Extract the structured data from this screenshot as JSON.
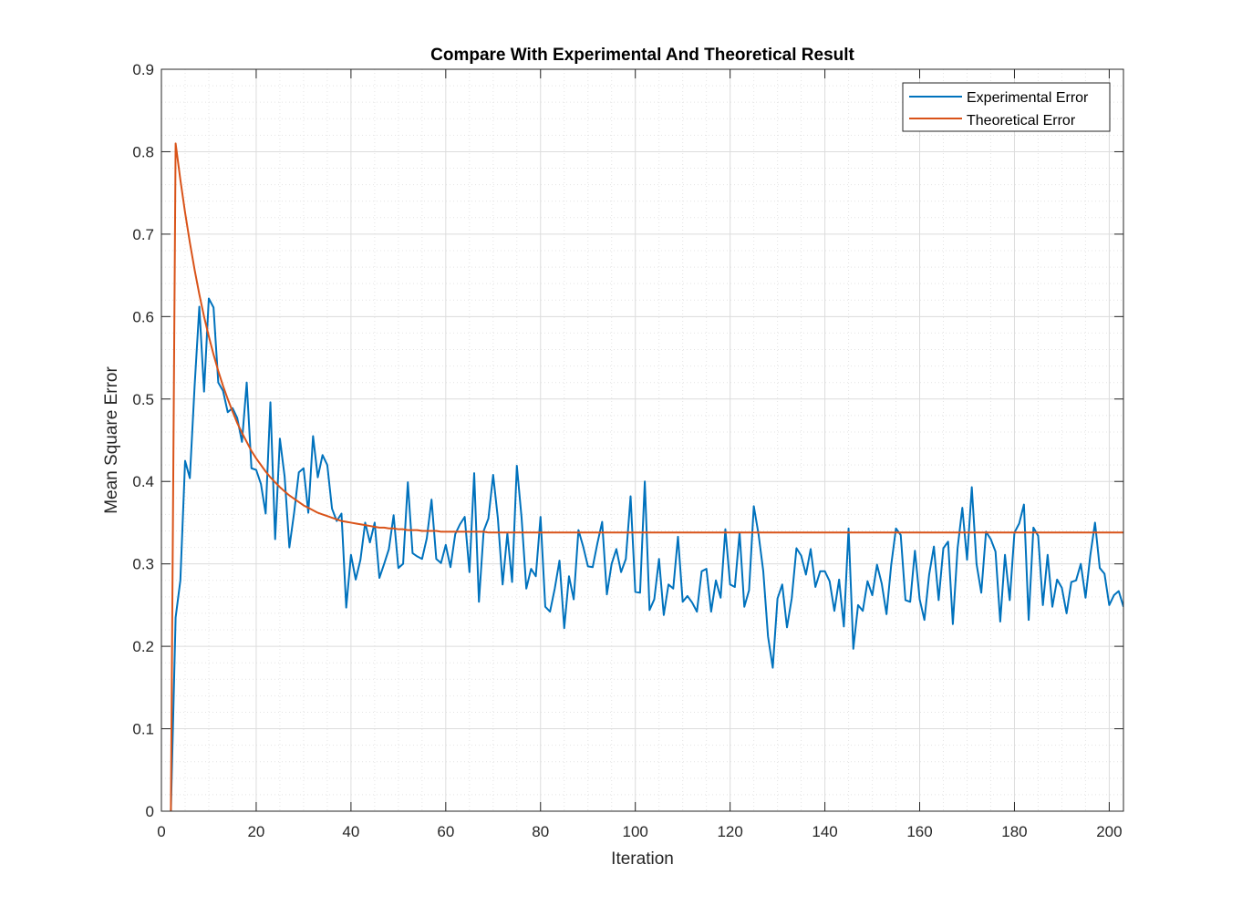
{
  "chart_data": {
    "type": "line",
    "title": "Compare With Experimental And Theoretical Result",
    "xlabel": "Iteration",
    "ylabel": "Mean Square Error",
    "xlim": [
      0,
      203
    ],
    "ylim": [
      0,
      0.9
    ],
    "xticks": [
      0,
      20,
      40,
      60,
      80,
      100,
      120,
      140,
      160,
      180,
      200
    ],
    "yticks": [
      0,
      0.1,
      0.2,
      0.3,
      0.4,
      0.5,
      0.6,
      0.7,
      0.8,
      0.9
    ],
    "xtick_labels": [
      "0",
      "20",
      "40",
      "60",
      "80",
      "100",
      "120",
      "140",
      "160",
      "180",
      "200"
    ],
    "ytick_labels": [
      "0",
      "0.1",
      "0.2",
      "0.3",
      "0.4",
      "0.5",
      "0.6",
      "0.7",
      "0.8",
      "0.9"
    ],
    "grid": true,
    "minor_grid": true,
    "legend_position": "top-right",
    "x_start": 2,
    "series": [
      {
        "name": "Experimental Error",
        "color": "#0072BD",
        "values": [
          0,
          0.235,
          0.28,
          0.425,
          0.404,
          0.515,
          0.612,
          0.509,
          0.622,
          0.611,
          0.52,
          0.51,
          0.484,
          0.489,
          0.477,
          0.448,
          0.52,
          0.416,
          0.414,
          0.397,
          0.361,
          0.496,
          0.33,
          0.452,
          0.406,
          0.32,
          0.362,
          0.411,
          0.416,
          0.362,
          0.455,
          0.405,
          0.432,
          0.42,
          0.367,
          0.352,
          0.361,
          0.247,
          0.311,
          0.281,
          0.305,
          0.35,
          0.326,
          0.35,
          0.283,
          0.3,
          0.318,
          0.359,
          0.295,
          0.3,
          0.399,
          0.313,
          0.309,
          0.306,
          0.331,
          0.378,
          0.306,
          0.301,
          0.323,
          0.296,
          0.336,
          0.348,
          0.357,
          0.29,
          0.41,
          0.254,
          0.34,
          0.355,
          0.408,
          0.355,
          0.275,
          0.337,
          0.278,
          0.419,
          0.356,
          0.27,
          0.294,
          0.285,
          0.357,
          0.248,
          0.242,
          0.27,
          0.304,
          0.222,
          0.285,
          0.257,
          0.341,
          0.321,
          0.297,
          0.296,
          0.325,
          0.351,
          0.263,
          0.3,
          0.318,
          0.29,
          0.306,
          0.382,
          0.266,
          0.265,
          0.4,
          0.244,
          0.257,
          0.306,
          0.238,
          0.275,
          0.27,
          0.333,
          0.254,
          0.261,
          0.253,
          0.242,
          0.291,
          0.294,
          0.242,
          0.28,
          0.259,
          0.342,
          0.275,
          0.272,
          0.338,
          0.248,
          0.268,
          0.37,
          0.336,
          0.291,
          0.212,
          0.174,
          0.258,
          0.275,
          0.223,
          0.258,
          0.319,
          0.31,
          0.287,
          0.318,
          0.272,
          0.291,
          0.291,
          0.279,
          0.243,
          0.281,
          0.224,
          0.343,
          0.197,
          0.25,
          0.243,
          0.279,
          0.262,
          0.299,
          0.276,
          0.239,
          0.299,
          0.343,
          0.335,
          0.256,
          0.254,
          0.316,
          0.257,
          0.232,
          0.287,
          0.321,
          0.256,
          0.319,
          0.327,
          0.227,
          0.319,
          0.368,
          0.305,
          0.393,
          0.3,
          0.265,
          0.339,
          0.33,
          0.315,
          0.23,
          0.311,
          0.256,
          0.338,
          0.349,
          0.372,
          0.232,
          0.344,
          0.334,
          0.25,
          0.311,
          0.248,
          0.281,
          0.271,
          0.24,
          0.278,
          0.28,
          0.3,
          0.259,
          0.31,
          0.35,
          0.295,
          0.288,
          0.25,
          0.262,
          0.267,
          0.248
        ]
      },
      {
        "name": "Theoretical Error",
        "color": "#D95319",
        "values": [
          0,
          0.81,
          0.766,
          0.726,
          0.69,
          0.657,
          0.627,
          0.6,
          0.576,
          0.554,
          0.534,
          0.516,
          0.5,
          0.485,
          0.471,
          0.459,
          0.448,
          0.437,
          0.428,
          0.42,
          0.412,
          0.405,
          0.399,
          0.393,
          0.388,
          0.383,
          0.379,
          0.375,
          0.371,
          0.368,
          0.365,
          0.362,
          0.36,
          0.358,
          0.356,
          0.354,
          0.352,
          0.351,
          0.35,
          0.349,
          0.348,
          0.347,
          0.346,
          0.345,
          0.344,
          0.344,
          0.343,
          0.343,
          0.342,
          0.342,
          0.341,
          0.341,
          0.341,
          0.34,
          0.34,
          0.34,
          0.34,
          0.339,
          0.339,
          0.339,
          0.339,
          0.339,
          0.339,
          0.339,
          0.339,
          0.339,
          0.339,
          0.338,
          0.338,
          0.338,
          0.338,
          0.338,
          0.338,
          0.338,
          0.338,
          0.338,
          0.338,
          0.338,
          0.338,
          0.338,
          0.338,
          0.338,
          0.338,
          0.338,
          0.338,
          0.338,
          0.338,
          0.338,
          0.338,
          0.338,
          0.338,
          0.338,
          0.338,
          0.338,
          0.338,
          0.338,
          0.338,
          0.338,
          0.338,
          0.338,
          0.338,
          0.338,
          0.338,
          0.338,
          0.338,
          0.338,
          0.338,
          0.338,
          0.338,
          0.338,
          0.338,
          0.338,
          0.338,
          0.338,
          0.338,
          0.338,
          0.338,
          0.338,
          0.338,
          0.338,
          0.338,
          0.338,
          0.338,
          0.338,
          0.338,
          0.338,
          0.338,
          0.338,
          0.338,
          0.338,
          0.338,
          0.338,
          0.338,
          0.338,
          0.338,
          0.338,
          0.338,
          0.338,
          0.338,
          0.338,
          0.338,
          0.338,
          0.338,
          0.338,
          0.338,
          0.338,
          0.338,
          0.338,
          0.338,
          0.338,
          0.338,
          0.338,
          0.338,
          0.338,
          0.338,
          0.338,
          0.338,
          0.338,
          0.338,
          0.338,
          0.338,
          0.338,
          0.338,
          0.338,
          0.338,
          0.338,
          0.338,
          0.338,
          0.338,
          0.338,
          0.338,
          0.338,
          0.338,
          0.338,
          0.338,
          0.338,
          0.338,
          0.338,
          0.338,
          0.338,
          0.338,
          0.338,
          0.338,
          0.338,
          0.338,
          0.338,
          0.338,
          0.338,
          0.338,
          0.338,
          0.338,
          0.338,
          0.338,
          0.338,
          0.338,
          0.338,
          0.338,
          0.338,
          0.338,
          0.338,
          0.338,
          0.338,
          0.338,
          0.338
        ]
      }
    ]
  }
}
